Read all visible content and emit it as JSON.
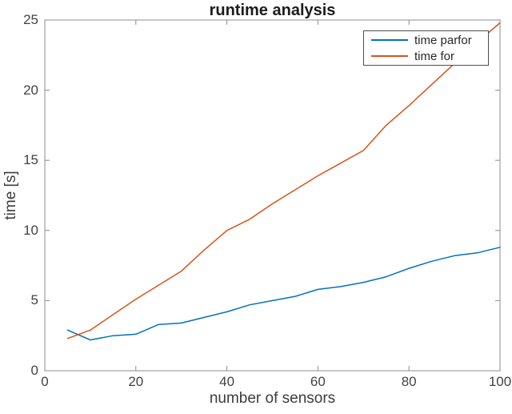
{
  "chart_data": {
    "type": "line",
    "title": "runtime analysis",
    "xlabel": "number of sensors",
    "ylabel": "time [s]",
    "x": [
      5,
      10,
      15,
      20,
      25,
      30,
      35,
      40,
      45,
      50,
      55,
      60,
      65,
      70,
      75,
      80,
      85,
      90,
      95,
      100
    ],
    "series": [
      {
        "name": "time parfor",
        "color": "#0072BD",
        "values": [
          2.9,
          2.2,
          2.5,
          2.6,
          3.3,
          3.4,
          3.8,
          4.2,
          4.7,
          5.0,
          5.3,
          5.8,
          6.0,
          6.3,
          6.7,
          7.3,
          7.8,
          8.2,
          8.4,
          8.8
        ]
      },
      {
        "name": "time for",
        "color": "#D95319",
        "values": [
          2.3,
          2.9,
          4.0,
          5.1,
          6.1,
          7.1,
          8.6,
          10.0,
          10.8,
          11.9,
          12.9,
          13.9,
          14.8,
          15.7,
          17.5,
          18.9,
          20.4,
          21.9,
          23.4,
          24.8
        ]
      }
    ],
    "xlim": [
      0,
      100
    ],
    "ylim": [
      0,
      25
    ],
    "xticks": [
      0,
      20,
      40,
      60,
      80,
      100
    ],
    "yticks": [
      0,
      5,
      10,
      15,
      20,
      25
    ],
    "grid": false,
    "legend_position": "top-right",
    "axis_color": "#8c8c8c",
    "tick_label_color": "#424242"
  }
}
